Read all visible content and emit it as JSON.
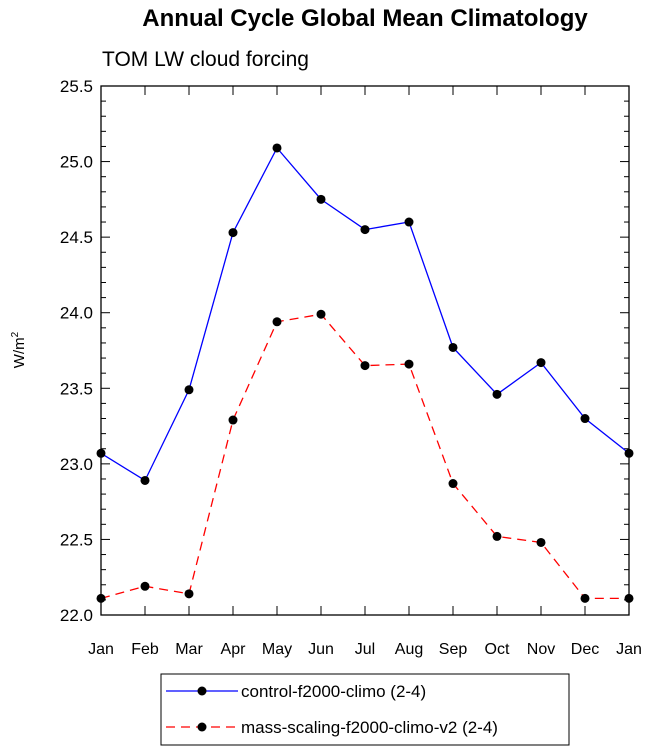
{
  "chart_data": {
    "type": "line",
    "title": "Annual Cycle Global Mean Climatology",
    "subtitle": "TOM LW cloud forcing",
    "ylabel": "W/m",
    "ylabel_sup": "2",
    "xlabel": "",
    "categories": [
      "Jan",
      "Feb",
      "Mar",
      "Apr",
      "May",
      "Jun",
      "Jul",
      "Aug",
      "Sep",
      "Oct",
      "Nov",
      "Dec",
      "Jan"
    ],
    "ylim": [
      22.0,
      25.5
    ],
    "yticks": [
      22.0,
      22.5,
      23.0,
      23.5,
      24.0,
      24.5,
      25.0,
      25.5
    ],
    "ytick_labels": [
      "22.0",
      "22.5",
      "23.0",
      "23.5",
      "24.0",
      "24.5",
      "25.0",
      "25.5"
    ],
    "grid": false,
    "legend_position": "bottom",
    "series": [
      {
        "name": "control-f2000-climo (2-4)",
        "color": "#0000ff",
        "dash": "solid",
        "values": [
          23.07,
          22.89,
          23.49,
          24.53,
          25.09,
          24.75,
          24.55,
          24.6,
          23.77,
          23.46,
          23.67,
          23.3,
          23.07
        ]
      },
      {
        "name": "mass-scaling-f2000-climo-v2 (2-4)",
        "color": "#ff0000",
        "dash": "dashed",
        "values": [
          22.11,
          22.19,
          22.14,
          23.29,
          23.94,
          23.99,
          23.65,
          23.66,
          22.87,
          22.52,
          22.48,
          22.11,
          22.11
        ]
      }
    ]
  }
}
